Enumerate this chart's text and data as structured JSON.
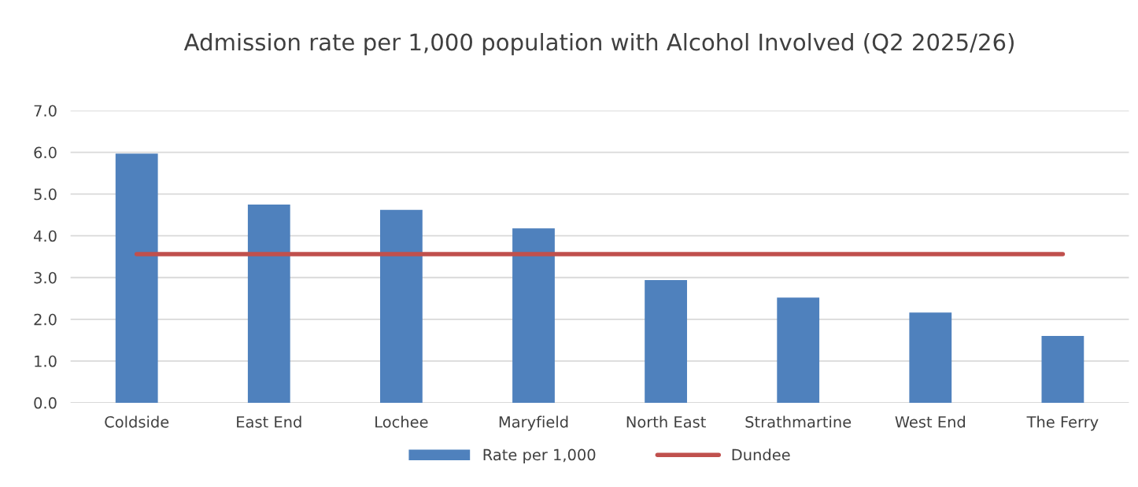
{
  "chart_data": {
    "type": "bar",
    "title": "Admission rate per 1,000 population with Alcohol Involved (Q2 2025/26)",
    "categories": [
      "Coldside",
      "East End",
      "Lochee",
      "Maryfield",
      "North East",
      "Strathmartine",
      "West End",
      "The Ferry"
    ],
    "series": [
      {
        "name": "Rate per 1,000",
        "color": "#4f81bd",
        "values": [
          5.97,
          4.75,
          4.62,
          4.18,
          2.94,
          2.52,
          2.16,
          1.6
        ]
      },
      {
        "name": "Dundee",
        "type": "line",
        "color": "#c0504d",
        "values": [
          3.56,
          3.56,
          3.56,
          3.56,
          3.56,
          3.56,
          3.56,
          3.56
        ]
      }
    ],
    "ylim": [
      0,
      7
    ],
    "yticks": [
      {
        "value": 0,
        "label": "0.0"
      },
      {
        "value": 1,
        "label": "1.0"
      },
      {
        "value": 2,
        "label": "2.0"
      },
      {
        "value": 3,
        "label": "3.0"
      },
      {
        "value": 4,
        "label": "4.0"
      },
      {
        "value": 5,
        "label": "5.0"
      },
      {
        "value": 6,
        "label": "6.0"
      },
      {
        "value": 7,
        "label": "7.0"
      }
    ],
    "grid": "y",
    "legend": "bottom"
  }
}
